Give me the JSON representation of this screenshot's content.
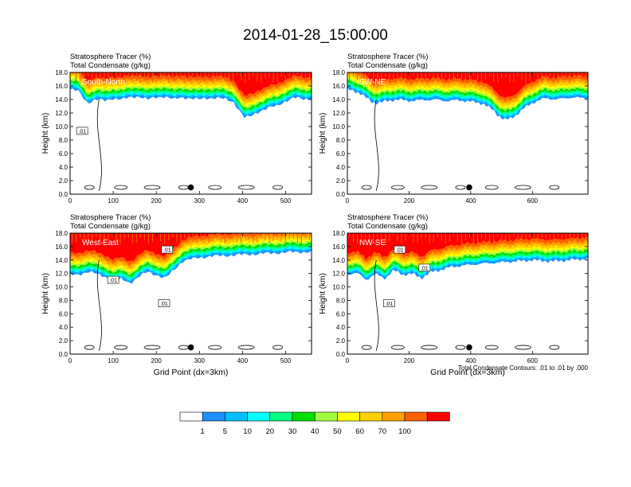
{
  "title": "2014-01-28_15:00:00",
  "footnote": "Total Condensate Contours: .01 to .01 by .000",
  "chart_data": [
    {
      "type": "heatmap",
      "panel_label": "South-North",
      "title_line1": "Stratosphere Tracer   (%)",
      "title_line2": "Total Condensate   (g/kg)",
      "ylabel": "Height (km)",
      "xlabel": "",
      "xlim": [
        0,
        560
      ],
      "ylim": [
        0,
        18
      ],
      "xticks": [
        "0",
        "100",
        "200",
        "300",
        "400",
        "500"
      ],
      "xtick_values": [
        0,
        100,
        200,
        300,
        400,
        500
      ],
      "yticks": [
        "0.0",
        "2.0",
        "4.0",
        "6.0",
        "8.0",
        "10.0",
        "12.0",
        "14.0",
        "16.0",
        "18.0"
      ],
      "contour_labels": [
        {
          "text": ".01",
          "x": 28,
          "y": 9.3
        }
      ],
      "marker": {
        "x": 280,
        "y": 1.0
      },
      "tracer_base_km": [
        [
          0,
          15.5
        ],
        [
          20,
          15.2
        ],
        [
          40,
          13.5
        ],
        [
          60,
          14.0
        ],
        [
          80,
          13.8
        ],
        [
          100,
          14.2
        ],
        [
          120,
          14.0
        ],
        [
          140,
          14.3
        ],
        [
          160,
          14.5
        ],
        [
          180,
          14.0
        ],
        [
          200,
          14.3
        ],
        [
          220,
          14.5
        ],
        [
          240,
          14.0
        ],
        [
          260,
          14.3
        ],
        [
          280,
          14.2
        ],
        [
          300,
          14.0
        ],
        [
          320,
          14.2
        ],
        [
          340,
          14.3
        ],
        [
          360,
          14.0
        ],
        [
          380,
          13.6
        ],
        [
          395,
          12.2
        ],
        [
          405,
          11.3
        ],
        [
          420,
          11.5
        ],
        [
          440,
          12.3
        ],
        [
          460,
          12.8
        ],
        [
          480,
          13.0
        ],
        [
          490,
          13.4
        ],
        [
          500,
          13.8
        ],
        [
          520,
          14.3
        ],
        [
          540,
          14.0
        ],
        [
          560,
          14.2
        ]
      ]
    },
    {
      "type": "heatmap",
      "panel_label": "SW-NE",
      "title_line1": "Stratosphere Tracer   (%)",
      "title_line2": "Total Condensate   (g/kg)",
      "ylabel": "Height (km)",
      "xlabel": "",
      "xlim": [
        0,
        780
      ],
      "ylim": [
        0,
        18
      ],
      "xticks": [
        "0",
        "200",
        "400",
        "600"
      ],
      "xtick_values": [
        0,
        200,
        400,
        600
      ],
      "yticks": [
        "0.0",
        "2.0",
        "4.0",
        "6.0",
        "8.0",
        "10.0",
        "12.0",
        "14.0",
        "16.0",
        "18.0"
      ],
      "contour_labels": [],
      "marker": {
        "x": 395,
        "y": 1.0
      },
      "tracer_base_km": [
        [
          0,
          15.5
        ],
        [
          40,
          15.0
        ],
        [
          80,
          13.6
        ],
        [
          100,
          13.5
        ],
        [
          120,
          13.7
        ],
        [
          160,
          14.0
        ],
        [
          200,
          13.8
        ],
        [
          240,
          13.9
        ],
        [
          280,
          14.0
        ],
        [
          320,
          13.8
        ],
        [
          360,
          13.9
        ],
        [
          400,
          13.7
        ],
        [
          440,
          13.4
        ],
        [
          470,
          12.5
        ],
        [
          490,
          11.6
        ],
        [
          510,
          11.0
        ],
        [
          530,
          11.2
        ],
        [
          550,
          11.8
        ],
        [
          575,
          12.8
        ],
        [
          600,
          13.5
        ],
        [
          640,
          14.2
        ],
        [
          680,
          14.0
        ],
        [
          720,
          14.3
        ],
        [
          780,
          14.2
        ]
      ]
    },
    {
      "type": "heatmap",
      "panel_label": "West-East",
      "title_line1": "Stratosphere Tracer   (%)",
      "title_line2": "Total Condensate   (g/kg)",
      "ylabel": "Height (km)",
      "xlabel": "Grid Point (dx=3km)",
      "xlim": [
        0,
        560
      ],
      "ylim": [
        0,
        18
      ],
      "xticks": [
        "0",
        "100",
        "200",
        "300",
        "400",
        "500"
      ],
      "xtick_values": [
        0,
        100,
        200,
        300,
        400,
        500
      ],
      "yticks": [
        "0.0",
        "2.0",
        "4.0",
        "6.0",
        "8.0",
        "10.0",
        "12.0",
        "14.0",
        "16.0",
        "18.0"
      ],
      "contour_labels": [
        {
          "text": ".01",
          "x": 225,
          "y": 15.5
        },
        {
          "text": ".01",
          "x": 100,
          "y": 11.0
        },
        {
          "text": ".01",
          "x": 218,
          "y": 7.5
        }
      ],
      "marker": {
        "x": 280,
        "y": 1.0
      },
      "tracer_base_km": [
        [
          0,
          11.8
        ],
        [
          20,
          11.9
        ],
        [
          40,
          12.2
        ],
        [
          60,
          12.0
        ],
        [
          80,
          11.6
        ],
        [
          100,
          10.8
        ],
        [
          120,
          11.2
        ],
        [
          140,
          10.6
        ],
        [
          160,
          11.5
        ],
        [
          180,
          12.3
        ],
        [
          200,
          11.8
        ],
        [
          220,
          11.2
        ],
        [
          240,
          12.5
        ],
        [
          260,
          13.8
        ],
        [
          300,
          14.4
        ],
        [
          340,
          14.6
        ],
        [
          400,
          14.8
        ],
        [
          460,
          15.0
        ],
        [
          520,
          15.2
        ],
        [
          560,
          15.2
        ]
      ]
    },
    {
      "type": "heatmap",
      "panel_label": "NW-SE",
      "title_line1": "Stratosphere Tracer   (%)",
      "title_line2": "Total Condensate   (g/kg)",
      "ylabel": "Height (km)",
      "xlabel": "Grid Point (dx=3km)",
      "xlim": [
        0,
        780
      ],
      "ylim": [
        0,
        18
      ],
      "xticks": [
        "0",
        "200",
        "400",
        "600"
      ],
      "xtick_values": [
        0,
        200,
        400,
        600
      ],
      "yticks": [
        "0.0",
        "2.0",
        "4.0",
        "6.0",
        "8.0",
        "10.0",
        "12.0",
        "14.0",
        "16.0",
        "18.0"
      ],
      "contour_labels": [
        {
          "text": ".01",
          "x": 170,
          "y": 15.5
        },
        {
          "text": ".01",
          "x": 250,
          "y": 12.8
        },
        {
          "text": ".01",
          "x": 135,
          "y": 7.5
        }
      ],
      "marker": {
        "x": 395,
        "y": 1.0
      },
      "tracer_base_km": [
        [
          0,
          11.8
        ],
        [
          30,
          12.2
        ],
        [
          60,
          11.0
        ],
        [
          90,
          12.0
        ],
        [
          120,
          11.2
        ],
        [
          150,
          12.5
        ],
        [
          180,
          11.8
        ],
        [
          210,
          12.0
        ],
        [
          240,
          11.3
        ],
        [
          270,
          12.2
        ],
        [
          300,
          12.5
        ],
        [
          340,
          13.0
        ],
        [
          380,
          13.2
        ],
        [
          420,
          13.4
        ],
        [
          480,
          13.6
        ],
        [
          540,
          13.8
        ],
        [
          600,
          14.0
        ],
        [
          660,
          13.8
        ],
        [
          720,
          14.0
        ],
        [
          780,
          14.2
        ]
      ]
    }
  ],
  "legend": {
    "colors": [
      "#ffffff",
      "#1e90ff",
      "#00bfff",
      "#00ffff",
      "#00ff7f",
      "#00e000",
      "#a0ff40",
      "#ffff00",
      "#ffd000",
      "#ffa000",
      "#ff6000",
      "#ff0000"
    ],
    "labels": [
      "1",
      "5",
      "10",
      "20",
      "30",
      "40",
      "50",
      "60",
      "70",
      "100"
    ]
  }
}
